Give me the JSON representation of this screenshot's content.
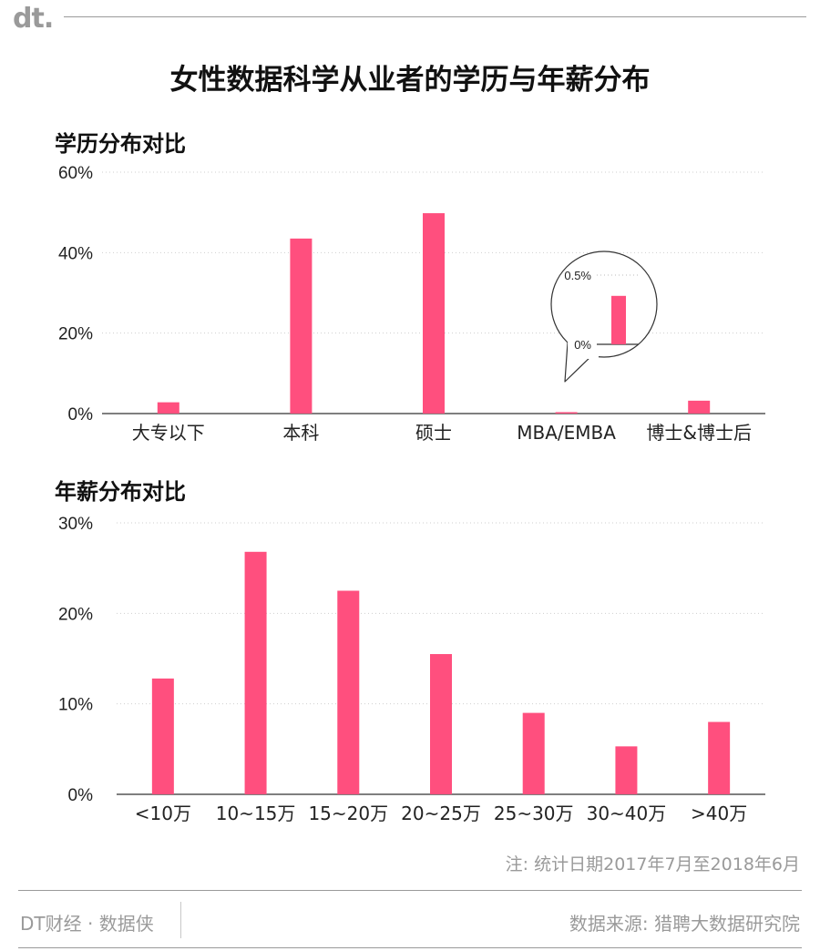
{
  "brand": {
    "logo_text": "dt."
  },
  "title": "女性数据科学从业者的学历与年薪分布",
  "accent_color": "#FF4F7E",
  "chart_data": [
    {
      "type": "bar",
      "title": "学历分布对比",
      "categories": [
        "大专以下",
        "本科",
        "硕士",
        "MBA/EMBA",
        "博士&博士后"
      ],
      "values": [
        2.8,
        43.5,
        49.8,
        0.35,
        3.2
      ],
      "unit": "%",
      "ylim": [
        0,
        60
      ],
      "yticks": [
        "0%",
        "20%",
        "40%",
        "60%"
      ],
      "grid": true,
      "inset": {
        "category": "MBA/EMBA",
        "value": 0.35,
        "ylim": [
          0,
          0.5
        ],
        "yticks": [
          "0%",
          "0.5%"
        ]
      }
    },
    {
      "type": "bar",
      "title": "年薪分布对比",
      "categories": [
        "<10万",
        "10~15万",
        "15~20万",
        "20~25万",
        "25~30万",
        "30~40万",
        ">40万"
      ],
      "values": [
        12.8,
        26.8,
        22.5,
        15.5,
        9.0,
        5.3,
        8.0
      ],
      "unit": "%",
      "ylim": [
        0,
        30
      ],
      "yticks": [
        "0%",
        "10%",
        "20%",
        "30%"
      ],
      "grid": true
    }
  ],
  "footer": {
    "note": "注: 统计日期2017年7月至2018年6月",
    "brand_name": "DT财经 · 数据侠",
    "source": "数据来源: 猎聘大数据研究院"
  }
}
